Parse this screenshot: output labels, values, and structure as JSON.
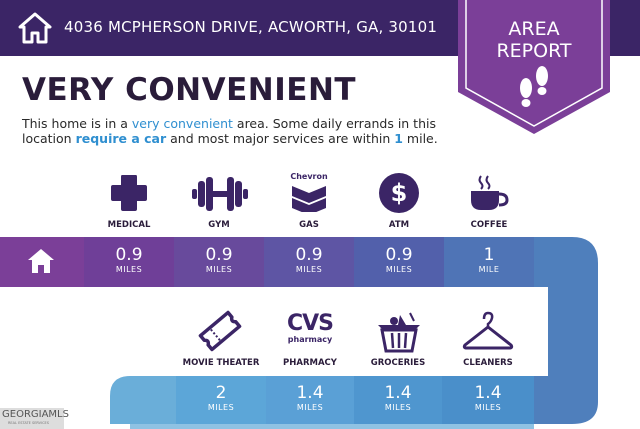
{
  "header": {
    "address": "4036 MCPHERSON DRIVE, ACWORTH, GA, 30101",
    "badge_line1": "AREA",
    "badge_line2": "REPORT"
  },
  "headline": "VERY CONVENIENT",
  "description": {
    "p1": "This home is in a ",
    "h1": "very convenient",
    "p2": " area. Some daily errands in this location ",
    "h2": "require a car",
    "p3": " and most major services are within ",
    "h3": "1",
    "p4": " mile."
  },
  "row1": [
    {
      "label": "MEDICAL",
      "value": "0.9",
      "unit": "MILES",
      "icon": "medical-cross-icon"
    },
    {
      "label": "GYM",
      "value": "0.9",
      "unit": "MILES",
      "icon": "dumbbell-icon"
    },
    {
      "label": "GAS",
      "value": "0.9",
      "unit": "MILES",
      "icon": "chevron-logo-icon",
      "brand": "Chevron"
    },
    {
      "label": "ATM",
      "value": "0.9",
      "unit": "MILES",
      "icon": "dollar-icon",
      "symbol": "$"
    },
    {
      "label": "COFFEE",
      "value": "1",
      "unit": "MILE",
      "icon": "coffee-cup-icon"
    }
  ],
  "row2": [
    {
      "label": "MOVIE THEATER",
      "value": "2",
      "unit": "MILES",
      "icon": "ticket-icon"
    },
    {
      "label": "PHARMACY",
      "value": "1.4",
      "unit": "MILES",
      "icon": "cvs-pharmacy-logo-icon",
      "brand1": "CVS",
      "brand2": "pharmacy"
    },
    {
      "label": "GROCERIES",
      "value": "1.4",
      "unit": "MILES",
      "icon": "grocery-basket-icon"
    },
    {
      "label": "CLEANERS",
      "value": "1.4",
      "unit": "MILES",
      "icon": "hanger-icon"
    }
  ],
  "watermark": {
    "main": "GEORGIAMLS",
    "sub": "REAL ESTATE SERVICES"
  },
  "colors": {
    "header_bg": "#3b2566",
    "badge": "#7b3f98",
    "highlight": "#2f8fd0",
    "row1": [
      "#7b3f98",
      "#6f3f98",
      "#684a9c",
      "#5e55a4",
      "#5260ab",
      "#4f74b6",
      "#4f7fbc"
    ],
    "row2": [
      "#6aaed9",
      "#5ca6d8",
      "#5aa0d6",
      "#4f96cf",
      "#4a8fca",
      "#4c86c3"
    ]
  }
}
